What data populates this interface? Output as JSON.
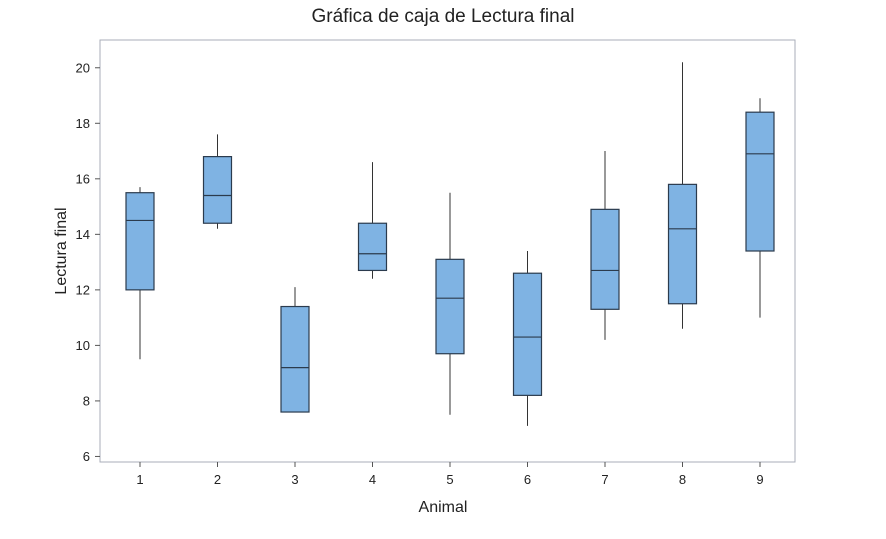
{
  "chart_data": {
    "type": "boxplot",
    "title": "Gráfica de caja de Lectura final",
    "xlabel": "Animal",
    "ylabel": "Lectura final",
    "ylim": [
      5.8,
      21
    ],
    "yticks": [
      6,
      8,
      10,
      12,
      14,
      16,
      18,
      20
    ],
    "categories": [
      "1",
      "2",
      "3",
      "4",
      "5",
      "6",
      "7",
      "8",
      "9"
    ],
    "boxes": [
      {
        "category": "1",
        "min": 9.5,
        "q1": 12.0,
        "median": 14.5,
        "q3": 15.5,
        "max": 15.7
      },
      {
        "category": "2",
        "min": 14.2,
        "q1": 14.4,
        "median": 15.4,
        "q3": 16.8,
        "max": 17.6
      },
      {
        "category": "3",
        "min": 7.6,
        "q1": 7.6,
        "median": 9.2,
        "q3": 11.4,
        "max": 12.1
      },
      {
        "category": "4",
        "min": 12.4,
        "q1": 12.7,
        "median": 13.3,
        "q3": 14.4,
        "max": 16.6
      },
      {
        "category": "5",
        "min": 7.5,
        "q1": 9.7,
        "median": 11.7,
        "q3": 13.1,
        "max": 15.5
      },
      {
        "category": "6",
        "min": 7.1,
        "q1": 8.2,
        "median": 10.3,
        "q3": 12.6,
        "max": 13.4
      },
      {
        "category": "7",
        "min": 10.2,
        "q1": 11.3,
        "median": 12.7,
        "q3": 14.9,
        "max": 17.0
      },
      {
        "category": "8",
        "min": 10.6,
        "q1": 11.5,
        "median": 14.2,
        "q3": 15.8,
        "max": 20.2
      },
      {
        "category": "9",
        "min": 11.0,
        "q1": 13.4,
        "median": 16.9,
        "q3": 18.4,
        "max": 18.9
      }
    ],
    "grid": false,
    "colors": {
      "box_fill": "#7fb3e3",
      "box_stroke": "#2b3b4d",
      "whisker": "#333333",
      "plot_background": "#ffffff",
      "frame": "#a9aeb8"
    }
  }
}
